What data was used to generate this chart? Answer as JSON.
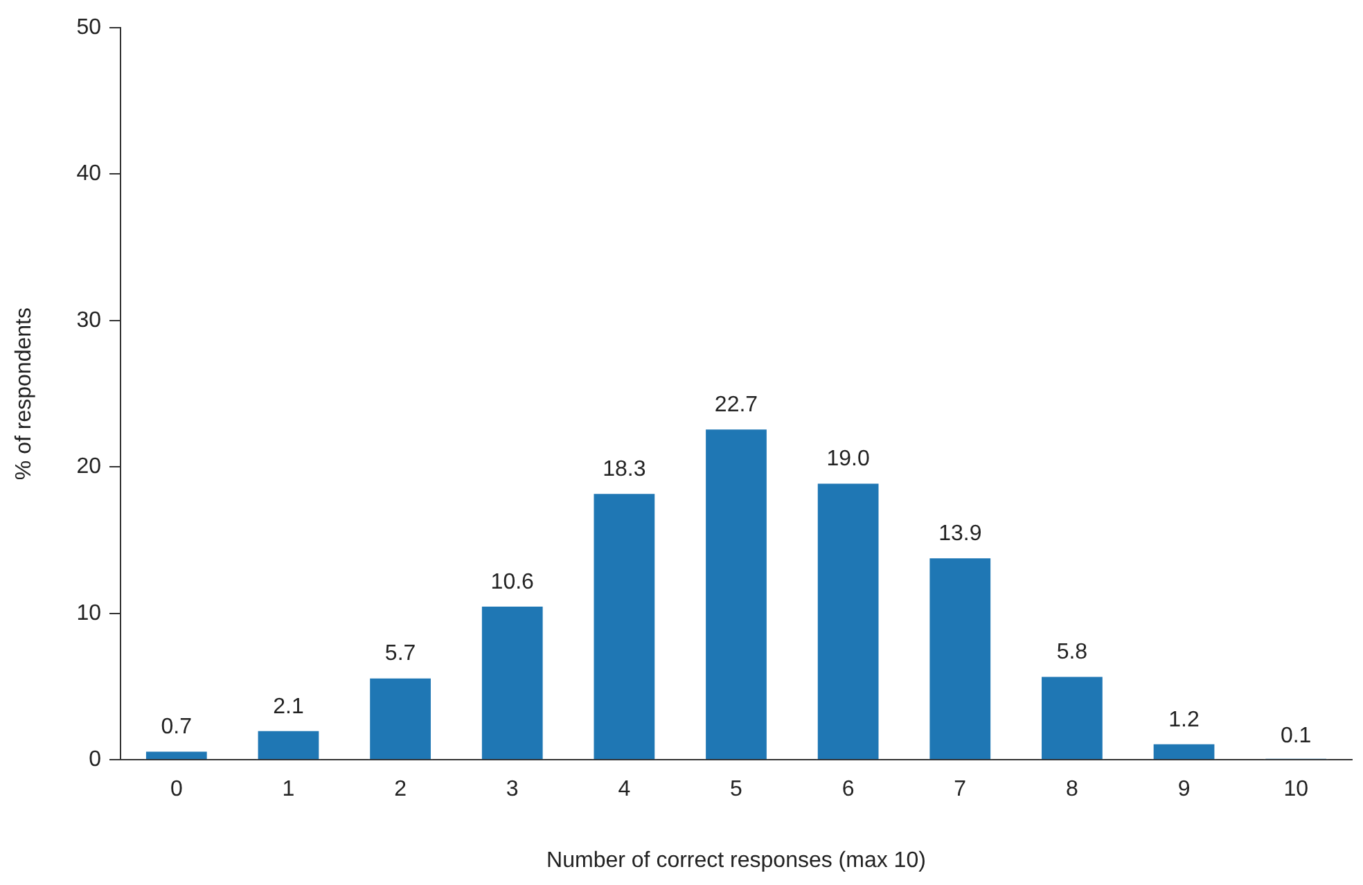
{
  "chart_data": {
    "type": "bar",
    "xlabel": "Number of correct responses (max 10)",
    "ylabel": "% of respondents",
    "categories": [
      "0",
      "1",
      "2",
      "3",
      "4",
      "5",
      "6",
      "7",
      "8",
      "9",
      "10"
    ],
    "values": [
      0.7,
      2.1,
      5.7,
      10.6,
      18.3,
      22.7,
      19.0,
      13.9,
      5.8,
      1.2,
      0.1
    ],
    "value_labels": [
      "0.7",
      "2.1",
      "5.7",
      "10.6",
      "18.3",
      "22.7",
      "19.0",
      "13.9",
      "5.8",
      "1.2",
      "0.1"
    ],
    "color": "#1f77b4",
    "ylim": [
      0,
      50
    ],
    "yticks": [
      0,
      10,
      20,
      30,
      40,
      50
    ],
    "grid": false,
    "legend": false
  }
}
